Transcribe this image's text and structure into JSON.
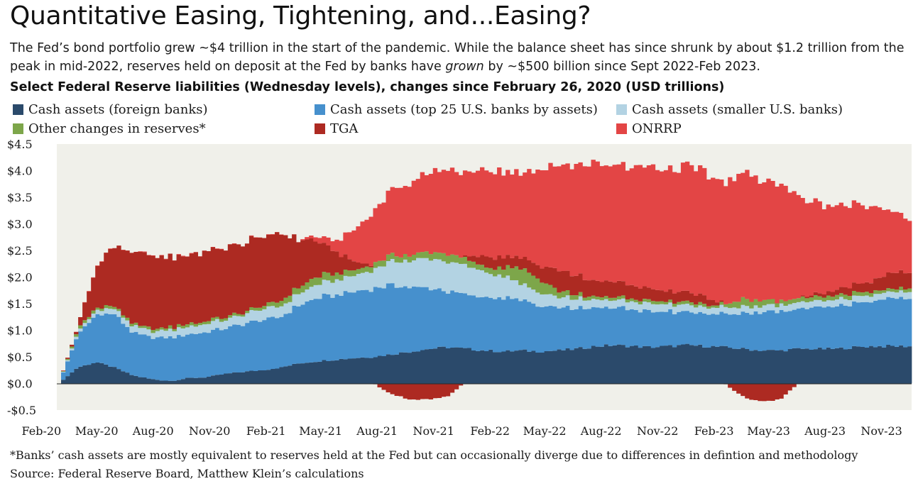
{
  "header": {
    "title": "Quantitative Easing, Tightening, and...Easing?",
    "subtitle_part1": "The Fed’s bond portfolio grew ~$4 trillion in the start of the pandemic. While the balance sheet has since shrunk by about $1.2 trillion from the peak in mid-2022, reserves held on deposit at the Fed by banks have ",
    "subtitle_emph": "grown",
    "subtitle_part2": " by ~$500 billion since Sept 2022-Feb 2023.",
    "chart_heading": "Select Federal Reserve liabilities (Wednesday levels), changes since February 26, 2020 (USD trillions)"
  },
  "footer": {
    "note": "*Banks’ cash assets are mostly equivalent to reserves held at the Fed but can occasionally diverge due to differences in defintion and methodology",
    "source": "Source: Federal Reserve Board, Matthew Klein’s calculations"
  },
  "colors": {
    "foreign": "#2b4a6b",
    "top25": "#4690cd",
    "smaller": "#b3d3e3",
    "other": "#7da64a",
    "tga": "#ad2a22",
    "onrrp": "#e34545",
    "plot_bg": "#f0f0ea"
  },
  "chart_data": {
    "type": "area",
    "stacked": true,
    "title": "Select Federal Reserve liabilities (Wednesday levels), changes since February 26, 2020 (USD trillions)",
    "ylim": [
      -0.5,
      4.5
    ],
    "yticks": [
      4.5,
      4.0,
      3.5,
      3.0,
      2.5,
      2.0,
      1.5,
      1.0,
      0.5,
      0.0,
      -0.5
    ],
    "ytick_labels": [
      "$4.5",
      "$4.0",
      "$3.5",
      "$3.0",
      "$2.5",
      "$2.0",
      "$1.5",
      "$1.0",
      "$0.5",
      "$0.0",
      "-$0.5"
    ],
    "xtick_labels": [
      "Feb-20",
      "May-20",
      "Aug-20",
      "Nov-20",
      "Feb-21",
      "May-21",
      "Aug-21",
      "Nov-21",
      "Feb-22",
      "May-22",
      "Aug-22",
      "Nov-22",
      "Feb-23",
      "May-23",
      "Aug-23",
      "Nov-23"
    ],
    "grid": false,
    "legend_position": "top",
    "x": [
      "2020-02",
      "2020-03",
      "2020-04",
      "2020-05",
      "2020-06",
      "2020-07",
      "2020-08",
      "2020-09",
      "2020-10",
      "2020-11",
      "2020-12",
      "2021-01",
      "2021-02",
      "2021-03",
      "2021-04",
      "2021-05",
      "2021-06",
      "2021-07",
      "2021-08",
      "2021-09",
      "2021-10",
      "2021-11",
      "2021-12",
      "2022-01",
      "2022-02",
      "2022-03",
      "2022-04",
      "2022-05",
      "2022-06",
      "2022-07",
      "2022-08",
      "2022-09",
      "2022-10",
      "2022-11",
      "2022-12",
      "2023-01",
      "2023-02",
      "2023-03",
      "2023-04",
      "2023-05",
      "2023-06",
      "2023-07",
      "2023-08",
      "2023-09",
      "2023-10",
      "2023-11",
      "2023-12"
    ],
    "series": [
      {
        "name": "Cash assets (foreign banks)",
        "key": "foreign",
        "values": [
          0.0,
          0.3,
          0.4,
          0.3,
          0.15,
          0.08,
          0.05,
          0.1,
          0.12,
          0.18,
          0.22,
          0.25,
          0.3,
          0.38,
          0.42,
          0.45,
          0.48,
          0.5,
          0.55,
          0.6,
          0.65,
          0.68,
          0.65,
          0.62,
          0.6,
          0.62,
          0.6,
          0.62,
          0.65,
          0.7,
          0.72,
          0.7,
          0.68,
          0.7,
          0.72,
          0.7,
          0.68,
          0.65,
          0.62,
          0.62,
          0.65,
          0.65,
          0.65,
          0.68,
          0.7,
          0.7,
          0.7
        ]
      },
      {
        "name": "Cash assets (top 25 U.S. banks by assets)",
        "key": "top25",
        "values": [
          0.0,
          0.6,
          0.9,
          1.0,
          0.8,
          0.78,
          0.82,
          0.82,
          0.85,
          0.85,
          0.9,
          0.95,
          0.95,
          1.1,
          1.2,
          1.22,
          1.25,
          1.3,
          1.3,
          1.22,
          1.15,
          1.05,
          1.0,
          1.02,
          1.0,
          0.95,
          0.85,
          0.8,
          0.75,
          0.72,
          0.72,
          0.7,
          0.68,
          0.65,
          0.62,
          0.62,
          0.62,
          0.68,
          0.72,
          0.72,
          0.75,
          0.78,
          0.8,
          0.82,
          0.85,
          0.88,
          0.9
        ]
      },
      {
        "name": "Cash assets (smaller U.S. banks)",
        "key": "smaller",
        "values": [
          0.0,
          0.05,
          0.08,
          0.1,
          0.12,
          0.12,
          0.14,
          0.15,
          0.16,
          0.16,
          0.18,
          0.2,
          0.2,
          0.22,
          0.25,
          0.28,
          0.3,
          0.35,
          0.45,
          0.5,
          0.55,
          0.55,
          0.55,
          0.48,
          0.4,
          0.3,
          0.25,
          0.2,
          0.18,
          0.15,
          0.15,
          0.15,
          0.15,
          0.14,
          0.13,
          0.12,
          0.12,
          0.12,
          0.12,
          0.12,
          0.12,
          0.12,
          0.12,
          0.12,
          0.12,
          0.12,
          0.12
        ]
      },
      {
        "name": "Other changes in reserves*",
        "key": "other",
        "values": [
          0.0,
          0.05,
          0.05,
          0.05,
          0.05,
          0.05,
          0.05,
          0.05,
          0.05,
          0.05,
          0.05,
          0.06,
          0.1,
          0.12,
          0.15,
          0.12,
          0.1,
          0.1,
          0.12,
          0.1,
          0.12,
          0.15,
          0.12,
          0.1,
          0.15,
          0.3,
          0.25,
          0.12,
          0.08,
          0.05,
          0.05,
          0.05,
          0.05,
          0.05,
          0.05,
          0.05,
          0.05,
          0.15,
          0.1,
          0.08,
          0.08,
          0.08,
          0.08,
          0.08,
          0.06,
          0.06,
          0.06
        ]
      },
      {
        "name": "TGA",
        "key": "tga",
        "values": [
          0.0,
          0.05,
          0.75,
          1.15,
          1.35,
          1.35,
          1.3,
          1.3,
          1.3,
          1.3,
          1.3,
          1.3,
          1.3,
          0.88,
          0.65,
          0.4,
          0.15,
          0.0,
          -0.2,
          -0.3,
          -0.3,
          -0.25,
          0.05,
          0.2,
          0.2,
          0.2,
          0.25,
          0.4,
          0.35,
          0.3,
          0.3,
          0.25,
          0.22,
          0.2,
          0.18,
          0.15,
          0.0,
          -0.25,
          -0.35,
          -0.3,
          0.0,
          0.05,
          0.1,
          0.15,
          0.2,
          0.3,
          0.3
        ]
      },
      {
        "name": "ONRRP",
        "key": "onrrp",
        "values": [
          0.0,
          0.0,
          0.0,
          0.0,
          0.0,
          0.0,
          0.0,
          0.0,
          0.0,
          0.0,
          0.0,
          0.0,
          0.0,
          0.0,
          0.1,
          0.2,
          0.6,
          1.0,
          1.2,
          1.35,
          1.5,
          1.6,
          1.6,
          1.6,
          1.6,
          1.6,
          1.8,
          2.0,
          2.1,
          2.2,
          2.2,
          2.25,
          2.3,
          2.3,
          2.35,
          2.3,
          2.3,
          2.35,
          2.3,
          2.2,
          1.9,
          1.7,
          1.6,
          1.5,
          1.4,
          1.2,
          1.0
        ]
      }
    ]
  },
  "chart_meta": {
    "x_start": "2020-02-26",
    "x_end": "2023-12-20",
    "xtick_dates": [
      "2020-02-01",
      "2020-05-01",
      "2020-08-01",
      "2020-11-01",
      "2021-02-01",
      "2021-05-01",
      "2021-08-01",
      "2021-11-01",
      "2022-02-01",
      "2022-05-01",
      "2022-08-01",
      "2022-11-01",
      "2023-02-01",
      "2023-05-01",
      "2023-08-01",
      "2023-11-01"
    ]
  }
}
